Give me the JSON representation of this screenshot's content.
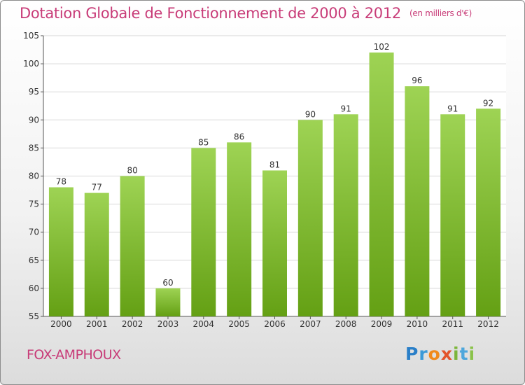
{
  "title": "Dotation Globale de Fonctionnement de 2000 à 2012",
  "unit_note": "(en milliers d'€)",
  "commune": "FOX-AMPHOUX",
  "logo": "Proxiti",
  "colors": {
    "title": "#c83c78",
    "bar_top": "#9ed354",
    "bar_bottom": "#64a014",
    "grid": "#d8d8d8"
  },
  "chart_data": {
    "type": "bar",
    "categories": [
      "2000",
      "2001",
      "2002",
      "2003",
      "2004",
      "2005",
      "2006",
      "2007",
      "2008",
      "2009",
      "2010",
      "2011",
      "2012"
    ],
    "values": [
      78,
      77,
      80,
      60,
      85,
      86,
      81,
      90,
      91,
      102,
      96,
      91,
      92
    ],
    "title": "Dotation Globale de Fonctionnement de 2000 à 2012",
    "xlabel": "",
    "ylabel": "",
    "ylim": [
      55,
      105
    ],
    "yticks": [
      55,
      60,
      65,
      70,
      75,
      80,
      85,
      90,
      95,
      100,
      105
    ],
    "grid": true,
    "data_labels": true
  }
}
